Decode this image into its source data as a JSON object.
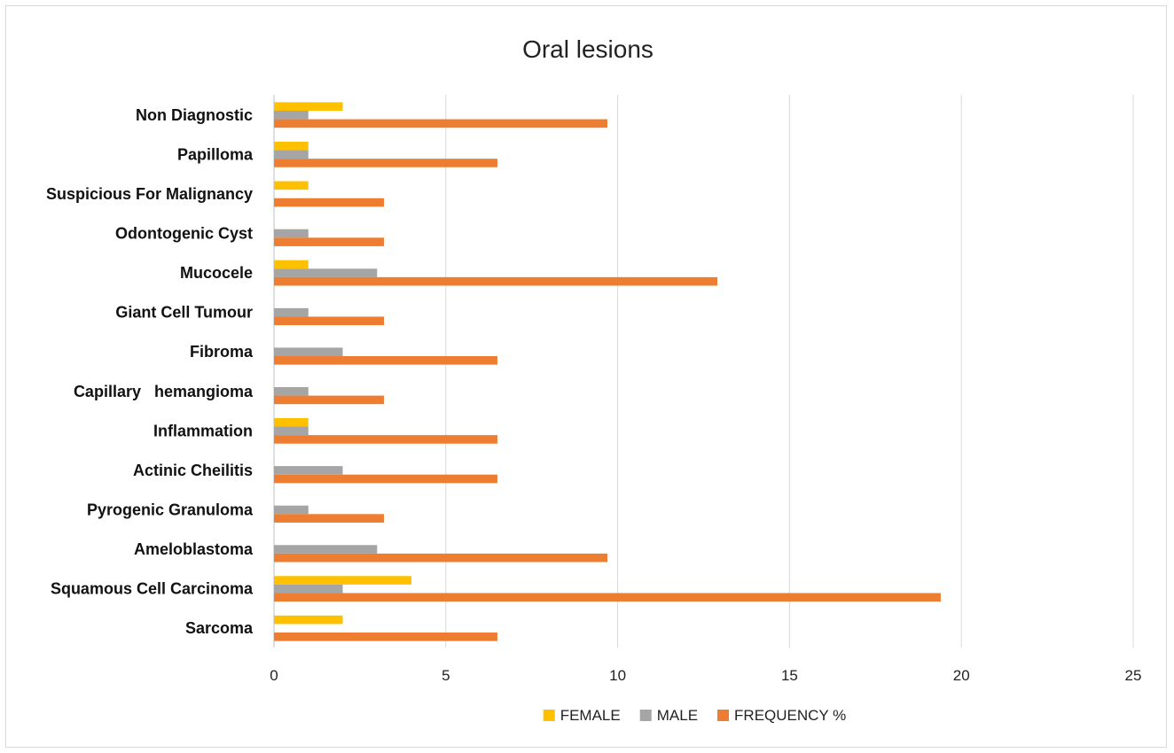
{
  "chart_data": {
    "type": "bar",
    "orientation": "horizontal",
    "title": "Oral lesions",
    "xlabel": "",
    "ylabel": "",
    "xlim": [
      0,
      25
    ],
    "x_ticks": [
      0,
      5,
      10,
      15,
      20,
      25
    ],
    "grid": true,
    "legend_position": "bottom",
    "categories": [
      "Non Diagnostic",
      "Papilloma",
      "Suspicious For Malignancy",
      "Odontogenic Cyst",
      "Mucocele",
      "Giant Cell Tumour",
      "Fibroma",
      "Capillary   hemangioma",
      "Inflammation",
      "Actinic Cheilitis",
      "Pyrogenic Granuloma",
      "Ameloblastoma",
      "Squamous Cell Carcinoma",
      "Sarcoma"
    ],
    "series": [
      {
        "name": "FEMALE",
        "color": "#FFC000",
        "values": [
          2,
          1,
          1,
          0,
          1,
          0,
          0,
          0,
          1,
          0,
          0,
          0,
          4,
          2
        ]
      },
      {
        "name": "MALE",
        "color": "#A5A5A5",
        "values": [
          1,
          1,
          0,
          1,
          3,
          1,
          2,
          1,
          1,
          2,
          1,
          3,
          2,
          0
        ]
      },
      {
        "name": "FREQUENCY %",
        "color": "#ED7D31",
        "values": [
          9.7,
          6.5,
          3.2,
          3.2,
          12.9,
          3.2,
          6.5,
          3.2,
          6.5,
          6.5,
          3.2,
          9.7,
          19.4,
          6.5
        ]
      }
    ]
  }
}
